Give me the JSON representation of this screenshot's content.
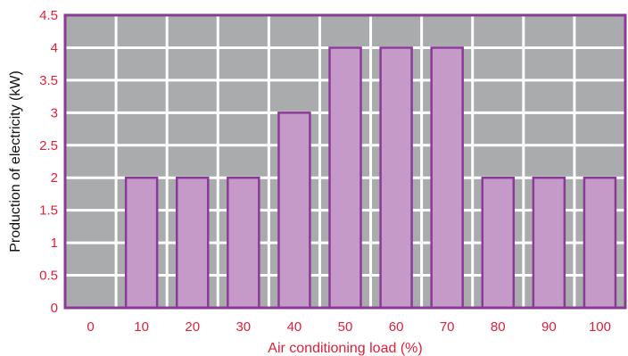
{
  "chart_data": {
    "type": "bar",
    "categories": [
      "0",
      "10",
      "20",
      "30",
      "40",
      "50",
      "60",
      "70",
      "80",
      "90",
      "100"
    ],
    "values": [
      0,
      2,
      2,
      2,
      3,
      4,
      4,
      4,
      2,
      2,
      2
    ],
    "xlabel": "Air conditioning load (%)",
    "ylabel": "Production of electricity (kW)",
    "ylim": [
      0,
      4.5
    ],
    "yticks": [
      "0",
      "0.5",
      "1",
      "1.5",
      "2",
      "2.5",
      "3",
      "3.5",
      "4",
      "4.5"
    ],
    "grid": true,
    "legend": "none",
    "colors": {
      "plot_background": "#a9abad",
      "bar_fill": "#c59ac9",
      "bar_stroke": "#8b3a97",
      "frame": "#8b3a97",
      "grid": "#ffffff",
      "tick_labels": "#e0203a",
      "x_title": "#e0203a",
      "y_title": "#111111"
    }
  }
}
